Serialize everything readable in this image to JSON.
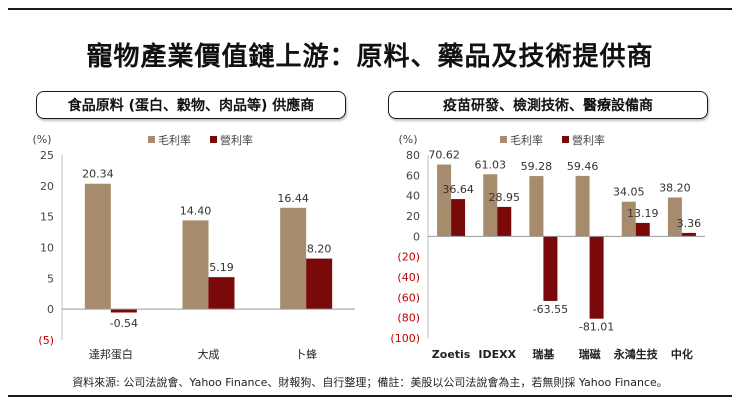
{
  "title": "寵物產業價值鏈上游：原料、藥品及技術提供商",
  "footer": "資料來源: 公司法說會、Yahoo Finance、財報狗、自行整理；備註：美股以公司法說會為主，若無則採 Yahoo Finance。",
  "colors": {
    "gross": "#a68b6c",
    "operating": "#7a0a0a",
    "negative_tick": "#c00000"
  },
  "chart_data": [
    {
      "type": "bar",
      "panel_title": "食品原料 (蛋白、穀物、肉品等) 供應商",
      "unit_label": "(%)",
      "categories": [
        "達邦蛋白",
        "大成",
        "卜蜂"
      ],
      "series": [
        {
          "name": "毛利率",
          "values": [
            20.34,
            14.4,
            16.44
          ]
        },
        {
          "name": "營利率",
          "values": [
            -0.54,
            5.19,
            8.2
          ]
        }
      ],
      "value_labels": [
        [
          "20.34",
          "14.40",
          "16.44"
        ],
        [
          "-0.54",
          "5.19",
          "8.20"
        ]
      ],
      "ylim": [
        -5,
        25
      ],
      "yticks": [
        -5,
        0,
        5,
        10,
        15,
        20,
        25
      ],
      "ytick_labels": [
        "(5)",
        "0",
        "5",
        "10",
        "15",
        "20",
        "25"
      ],
      "grid": false,
      "legend": "top"
    },
    {
      "type": "bar",
      "panel_title": "疫苗研發、檢測技術、醫療設備商",
      "unit_label": "(%)",
      "categories": [
        "Zoetis",
        "IDEXX",
        "瑞基",
        "瑞磁",
        "永鴻生技",
        "中化"
      ],
      "series": [
        {
          "name": "毛利率",
          "values": [
            70.62,
            61.03,
            59.28,
            59.46,
            34.05,
            38.2
          ]
        },
        {
          "name": "營利率",
          "values": [
            36.64,
            28.95,
            -63.55,
            -81.01,
            13.19,
            3.36
          ]
        }
      ],
      "value_labels": [
        [
          "70.62",
          "61.03",
          "59.28",
          "59.46",
          "34.05",
          "38.20"
        ],
        [
          "36.64",
          "28.95",
          "-63.55",
          "-81.01",
          "13.19",
          "3.36"
        ]
      ],
      "ylim": [
        -100,
        80
      ],
      "yticks": [
        -100,
        -80,
        -60,
        -40,
        -20,
        0,
        20,
        40,
        60,
        80
      ],
      "ytick_labels": [
        "(100)",
        "(80)",
        "(60)",
        "(40)",
        "(20)",
        "0",
        "20",
        "40",
        "60",
        "80"
      ],
      "grid": false,
      "legend": "top"
    }
  ]
}
